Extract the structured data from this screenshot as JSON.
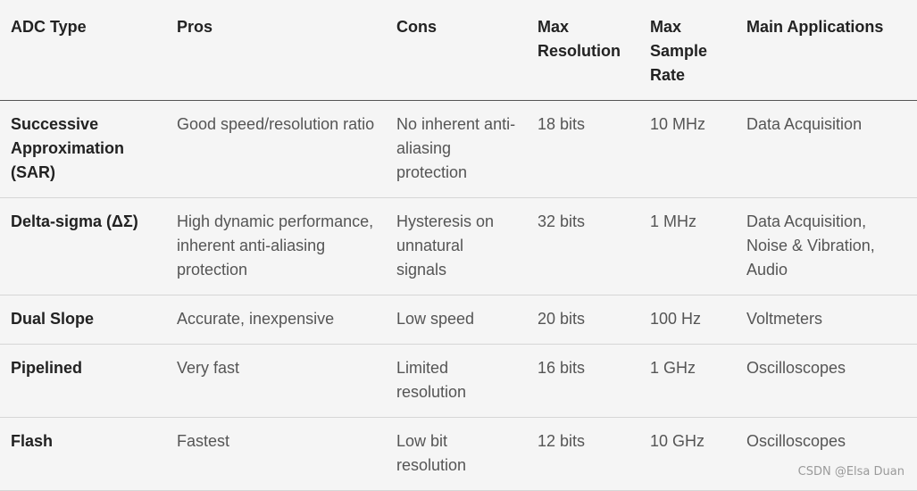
{
  "table": {
    "headers": [
      "ADC Type",
      "Pros",
      "Cons",
      "Max Resolution",
      "Max Sample Rate",
      "Main Applications"
    ],
    "rows": [
      [
        "Successive Approximation (SAR)",
        "Good speed/resolution ratio",
        "No inherent anti-aliasing protection",
        "18 bits",
        "10 MHz",
        "Data Acquisition"
      ],
      [
        "Delta-sigma (ΔΣ)",
        "High dynamic performance, inherent anti-aliasing protection",
        "Hysteresis on unnatural signals",
        "32 bits",
        "1 MHz",
        "Data Acquisition, Noise & Vibration, Audio"
      ],
      [
        "Dual Slope",
        "Accurate, inexpensive",
        "Low speed",
        "20 bits",
        "100 Hz",
        "Voltmeters"
      ],
      [
        "Pipelined",
        "Very fast",
        "Limited resolution",
        "16 bits",
        "1 GHz",
        "Oscilloscopes"
      ],
      [
        "Flash",
        "Fastest",
        "Low bit resolution",
        "12 bits",
        "10 GHz",
        "Oscilloscopes"
      ]
    ]
  },
  "watermark": "CSDN @Elsa Duan"
}
